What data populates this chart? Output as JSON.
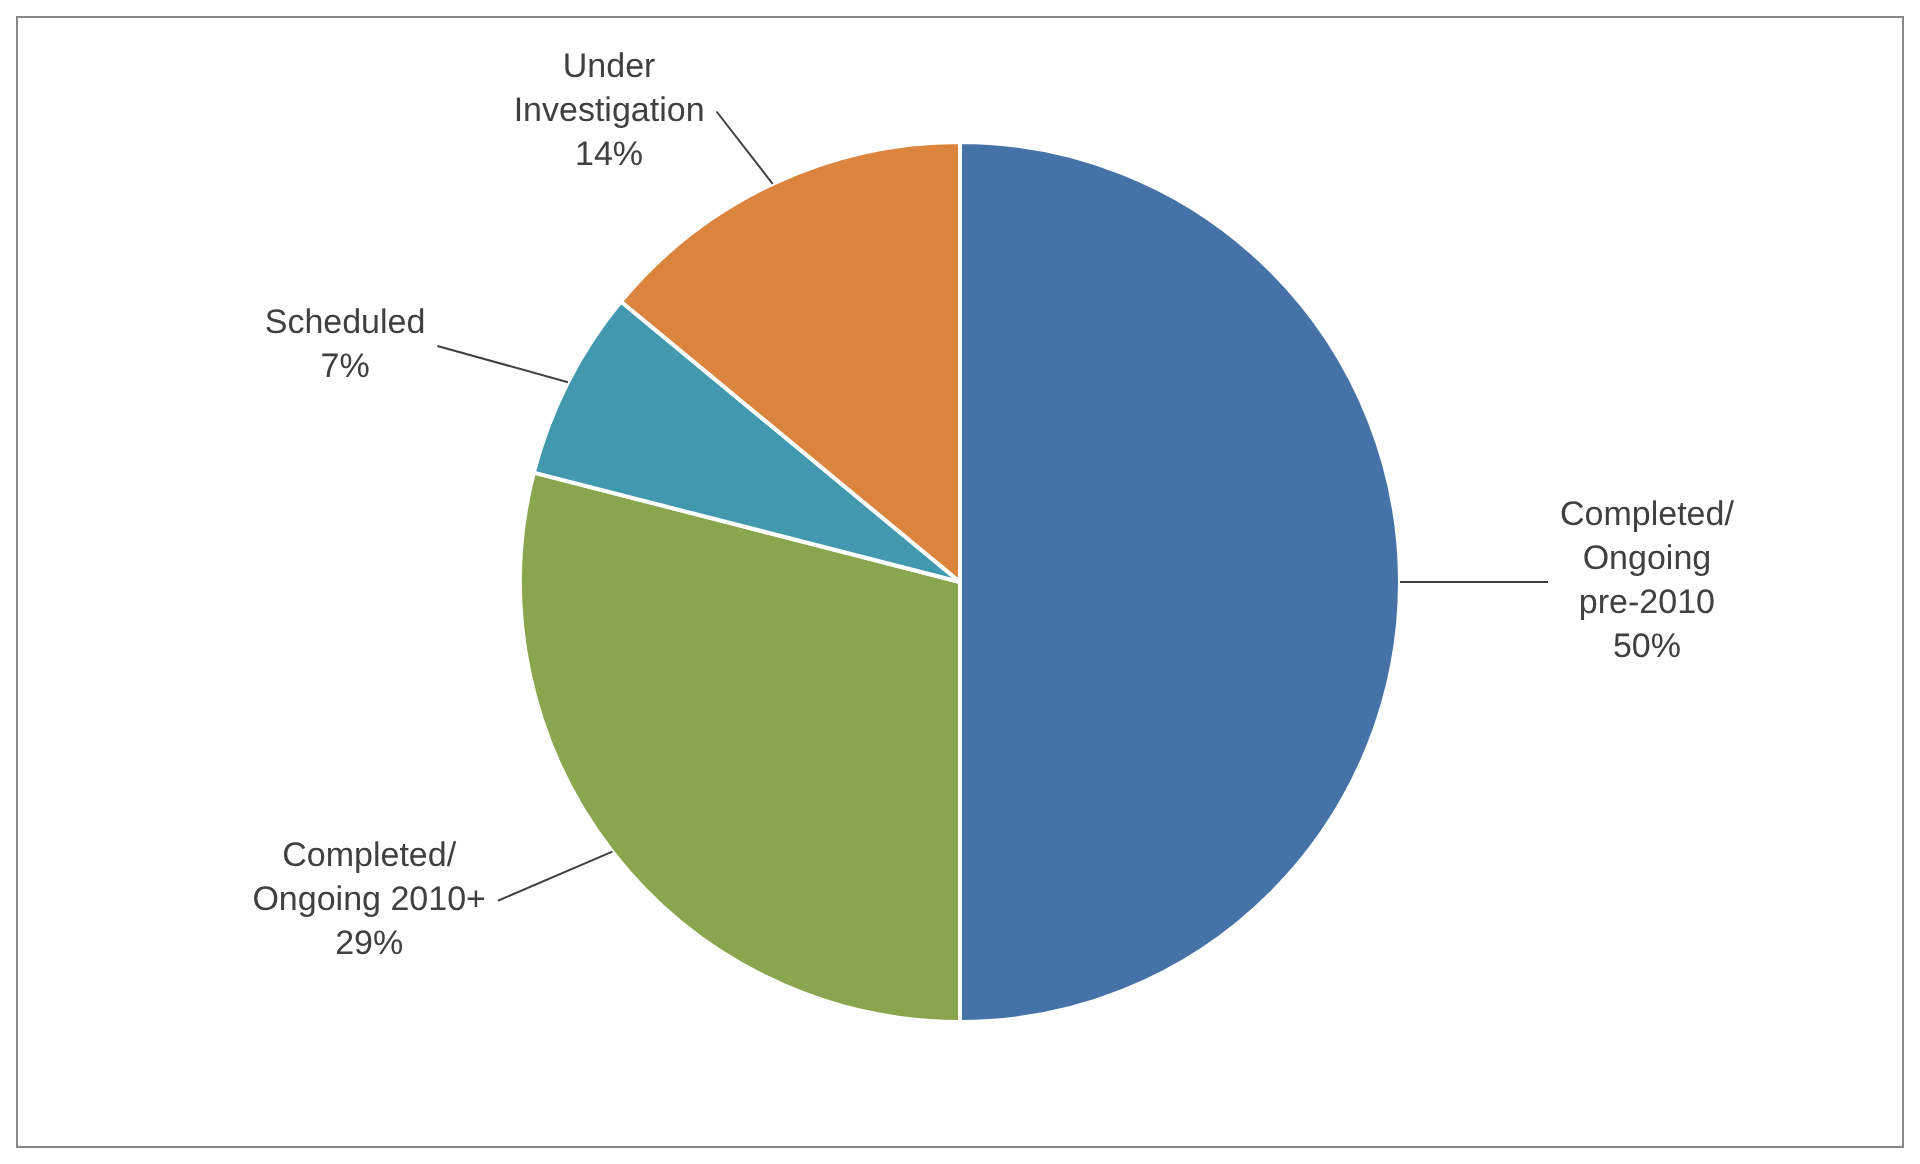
{
  "chart_data": {
    "type": "pie",
    "categories": [
      "Completed/ Ongoing pre-2010",
      "Completed/ Ongoing 2010+",
      "Scheduled",
      "Under Investigation"
    ],
    "values": [
      50,
      29,
      7,
      14
    ],
    "value_labels": [
      "50%",
      "29%",
      "7%",
      "14%"
    ],
    "colors": [
      "#4572a7",
      "#89a54e",
      "#4198af",
      "#db843d"
    ],
    "legend": false
  }
}
